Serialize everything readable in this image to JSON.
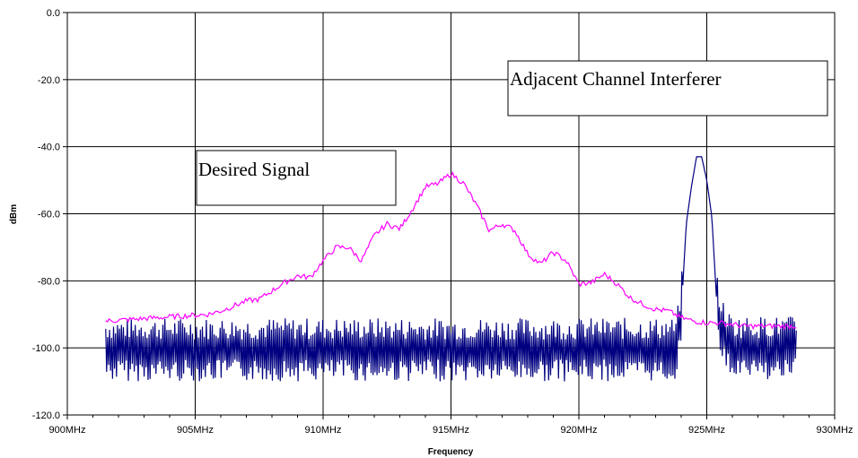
{
  "chart_data": {
    "type": "line",
    "xlabel": "Frequency",
    "ylabel": "dBm",
    "x_unit": "MHz",
    "xlim": [
      900,
      930
    ],
    "ylim": [
      -120,
      0
    ],
    "x_ticks": [
      900,
      905,
      910,
      915,
      920,
      925,
      930
    ],
    "x_tick_labels": [
      "900MHz",
      "905MHz",
      "910MHz",
      "915MHz",
      "920MHz",
      "925MHz",
      "930MHz"
    ],
    "y_ticks": [
      0,
      -20,
      -40,
      -60,
      -80,
      -100,
      -120
    ],
    "y_tick_labels": [
      "0.0",
      "-20.0",
      "-40.0",
      "-60.0",
      "-80.0",
      "-100.0",
      "-120.0"
    ],
    "grid": true,
    "annotations": [
      "Adjacent Channel Interferer",
      "Desired Signal"
    ],
    "series": [
      {
        "color": "#ff00ff",
        "x": [
          901.5,
          902.5,
          903.5,
          904.5,
          905.5,
          906.0,
          906.5,
          907.0,
          907.5,
          908.0,
          908.5,
          909.0,
          909.5,
          910.0,
          910.5,
          911.0,
          911.5,
          912.0,
          912.5,
          913.0,
          913.5,
          914.0,
          914.5,
          915.0,
          915.5,
          916.0,
          916.5,
          917.0,
          917.5,
          918.0,
          918.5,
          919.0,
          919.5,
          920.0,
          920.5,
          921.0,
          921.5,
          922.0,
          922.5,
          923.0,
          923.5,
          924.0,
          924.5,
          925.0,
          925.5,
          926.0,
          926.5,
          927.0,
          927.5,
          928.0,
          928.5
        ],
        "y": [
          -92,
          -91.5,
          -91,
          -90.5,
          -90,
          -89,
          -87.5,
          -86,
          -85.5,
          -83,
          -80.5,
          -78.5,
          -79,
          -74,
          -70,
          -70,
          -74,
          -66.5,
          -63,
          -64.5,
          -58.5,
          -52,
          -51,
          -48,
          -51,
          -57.5,
          -65,
          -63,
          -65,
          -72,
          -75,
          -71.5,
          -74,
          -81,
          -80.5,
          -78,
          -81,
          -85,
          -87,
          -88.5,
          -89,
          -91,
          -92,
          -92.5,
          -92.5,
          -93,
          -93.5,
          -93.5,
          -93.5,
          -93.5,
          -93.5
        ]
      },
      {
        "color": "#000080",
        "x": [
          901.5,
          902.0,
          903.0,
          904.0,
          905.0,
          906.0,
          907.0,
          908.0,
          909.0,
          910.0,
          911.0,
          912.0,
          913.0,
          914.0,
          915.0,
          916.0,
          917.0,
          918.0,
          919.0,
          920.0,
          921.0,
          922.0,
          923.0,
          923.8,
          924.0,
          924.2,
          924.4,
          924.6,
          924.8,
          925.0,
          925.2,
          925.4,
          925.6,
          926.0,
          926.5,
          927.0,
          927.5,
          928.0,
          928.5
        ],
        "y": [
          -100.5,
          -100.5,
          -100.5,
          -100.5,
          -100.5,
          -100.5,
          -100.5,
          -100.5,
          -100.5,
          -100.5,
          -100.5,
          -100.5,
          -100.5,
          -100.5,
          -100.5,
          -100.5,
          -100.5,
          -100.5,
          -100.5,
          -100.5,
          -100.5,
          -100.5,
          -100.5,
          -100.5,
          -90,
          -63,
          -52,
          -43,
          -43,
          -50,
          -61,
          -88,
          -95,
          -100,
          -100,
          -100,
          -100,
          -100,
          -100
        ]
      }
    ]
  }
}
